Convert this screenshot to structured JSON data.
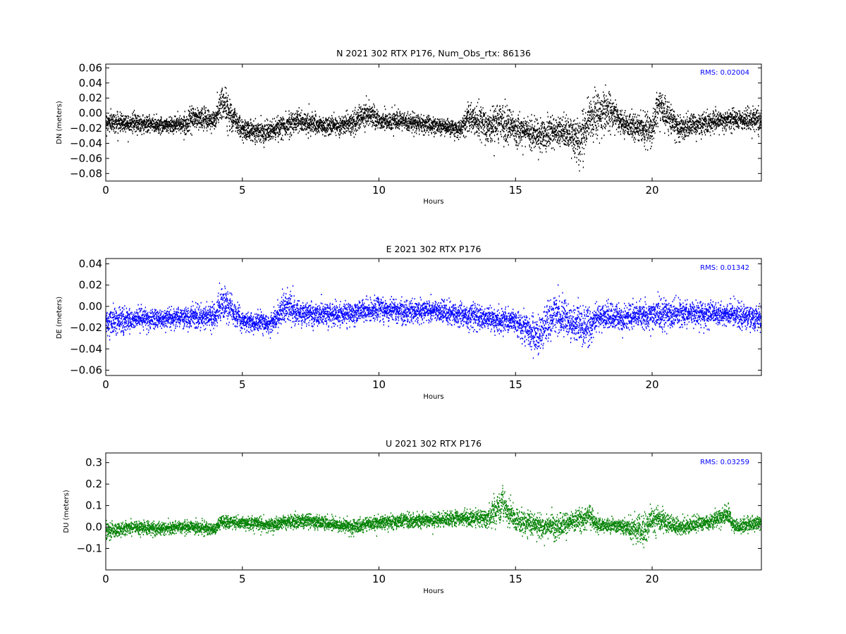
{
  "chart_data": [
    {
      "type": "scatter",
      "title": "N 2021 302 RTX  P176, Num_Obs_rtx: 86136",
      "xlabel": "Hours",
      "ylabel": "DN (meters)",
      "rms_label": "RMS:  0.02004",
      "color": "#000000",
      "rms_color": "#0000ff",
      "xlim": [
        0,
        24
      ],
      "ylim": [
        -0.09,
        0.065
      ],
      "xticks": [
        0,
        5,
        10,
        15,
        20
      ],
      "yticks": [
        -0.08,
        -0.06,
        -0.04,
        -0.02,
        0.0,
        0.02,
        0.04,
        0.06
      ],
      "ytick_labels": [
        "−0.08",
        "−0.06",
        "−0.04",
        "−0.02",
        "0.00",
        "0.02",
        "0.04",
        "0.06"
      ],
      "series": [
        {
          "x": [
            0,
            1,
            2,
            3,
            3.2,
            4,
            4.25,
            5,
            6,
            7,
            8,
            9,
            9.6,
            10,
            11,
            12,
            13,
            13.3,
            14,
            14.5,
            15,
            16,
            17,
            17.3,
            17.7,
            18.4,
            19,
            20,
            20.2,
            21,
            22,
            23,
            24
          ],
          "y": [
            -0.012,
            -0.013,
            -0.016,
            -0.014,
            -0.006,
            -0.01,
            0.015,
            -0.022,
            -0.025,
            -0.01,
            -0.018,
            -0.014,
            0.0,
            -0.01,
            -0.012,
            -0.016,
            -0.022,
            -0.005,
            -0.02,
            -0.012,
            -0.022,
            -0.028,
            -0.026,
            -0.04,
            -0.01,
            0.005,
            -0.015,
            -0.022,
            0.01,
            -0.02,
            -0.012,
            -0.008,
            -0.01
          ],
          "spread": [
            0.012,
            0.012,
            0.01,
            0.011,
            0.015,
            0.013,
            0.025,
            0.013,
            0.013,
            0.015,
            0.012,
            0.013,
            0.018,
            0.012,
            0.012,
            0.011,
            0.01,
            0.02,
            0.022,
            0.025,
            0.018,
            0.022,
            0.02,
            0.03,
            0.028,
            0.025,
            0.015,
            0.02,
            0.022,
            0.015,
            0.014,
            0.013,
            0.014
          ]
        }
      ]
    },
    {
      "type": "scatter",
      "title": "E 2021 302 RTX  P176",
      "xlabel": "Hours",
      "ylabel": "DE (meters)",
      "rms_label": "RMS:  0.01342",
      "color": "#0000ff",
      "rms_color": "#0000ff",
      "xlim": [
        0,
        24
      ],
      "ylim": [
        -0.065,
        0.045
      ],
      "xticks": [
        0,
        5,
        10,
        15,
        20
      ],
      "yticks": [
        -0.06,
        -0.04,
        -0.02,
        0.0,
        0.02,
        0.04
      ],
      "ytick_labels": [
        "−0.06",
        "−0.04",
        "−0.02",
        "0.00",
        "0.02",
        "0.04"
      ],
      "series": [
        {
          "x": [
            0,
            1,
            2,
            3,
            4,
            4.25,
            5,
            6,
            6.7,
            7,
            8,
            9,
            10,
            11,
            12,
            13,
            14,
            15,
            15.8,
            16.4,
            17,
            17.7,
            18,
            19,
            20,
            21,
            22,
            23,
            24
          ],
          "y": [
            -0.015,
            -0.012,
            -0.012,
            -0.01,
            -0.01,
            0.005,
            -0.014,
            -0.016,
            0.002,
            -0.008,
            -0.008,
            -0.006,
            -0.002,
            -0.005,
            -0.004,
            -0.008,
            -0.012,
            -0.014,
            -0.03,
            -0.005,
            -0.015,
            -0.02,
            -0.01,
            -0.01,
            -0.008,
            -0.006,
            -0.008,
            -0.008,
            -0.012
          ],
          "spread": [
            0.012,
            0.01,
            0.009,
            0.01,
            0.011,
            0.018,
            0.009,
            0.009,
            0.016,
            0.012,
            0.01,
            0.01,
            0.01,
            0.01,
            0.01,
            0.011,
            0.011,
            0.012,
            0.018,
            0.02,
            0.014,
            0.02,
            0.011,
            0.012,
            0.012,
            0.012,
            0.011,
            0.011,
            0.011
          ]
        }
      ]
    },
    {
      "type": "scatter",
      "title": "U 2021 302 RTX  P176",
      "xlabel": "Hours",
      "ylabel": "DU (meters)",
      "rms_label": "RMS:  0.03259",
      "color": "#008000",
      "rms_color": "#0000ff",
      "xlim": [
        0,
        24
      ],
      "ylim": [
        -0.2,
        0.345
      ],
      "xticks": [
        0,
        5,
        10,
        15,
        20
      ],
      "yticks": [
        -0.1,
        0.0,
        0.1,
        0.2,
        0.3
      ],
      "ytick_labels": [
        "−0.1",
        "0.0",
        "0.1",
        "0.2",
        "0.3"
      ],
      "series": [
        {
          "x": [
            0,
            1,
            2,
            3,
            4,
            4.2,
            5,
            6,
            7,
            8,
            9,
            10,
            11,
            12,
            13,
            14,
            14.5,
            15,
            16,
            16.5,
            17,
            17.7,
            18,
            19,
            19.7,
            20,
            21,
            22,
            22.8,
            23,
            24
          ],
          "y": [
            -0.02,
            0.0,
            -0.01,
            0.0,
            -0.01,
            0.02,
            0.02,
            0.01,
            0.03,
            0.02,
            0.0,
            0.02,
            0.03,
            0.03,
            0.04,
            0.04,
            0.11,
            0.03,
            0.0,
            0.0,
            0.02,
            0.05,
            0.01,
            0.0,
            -0.02,
            0.04,
            0.0,
            0.02,
            0.06,
            0.0,
            0.02
          ],
          "spread": [
            0.035,
            0.03,
            0.028,
            0.028,
            0.03,
            0.03,
            0.03,
            0.03,
            0.035,
            0.032,
            0.03,
            0.032,
            0.035,
            0.032,
            0.035,
            0.04,
            0.08,
            0.05,
            0.05,
            0.06,
            0.045,
            0.05,
            0.035,
            0.035,
            0.08,
            0.06,
            0.035,
            0.035,
            0.04,
            0.035,
            0.035
          ]
        }
      ]
    }
  ]
}
